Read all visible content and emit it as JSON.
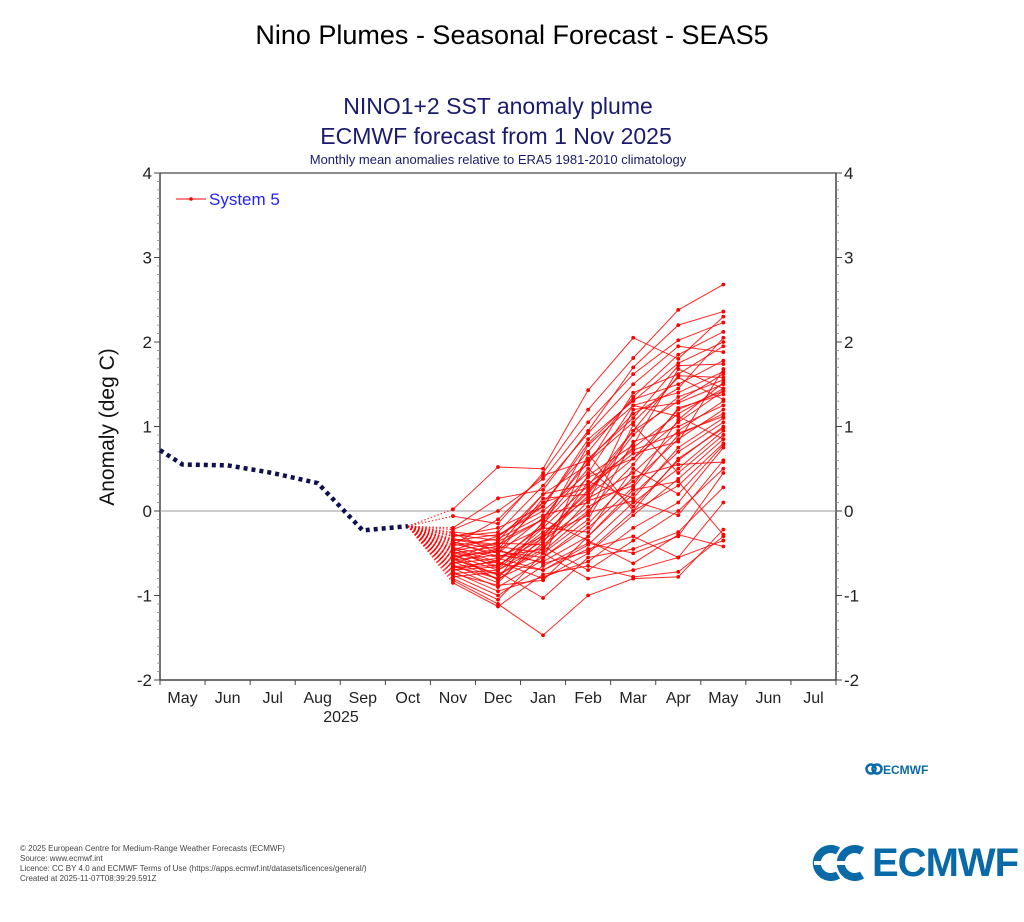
{
  "page": {
    "title": "Nino Plumes - Seasonal Forecast - SEAS5",
    "footer": [
      "© 2025 European Centre for Medium-Range Weather Forecasts (ECMWF)",
      "Source: www.ecmwf.int",
      "Licence: CC BY 4.0 and ECMWF Terms of Use (https://apps.ecmwf.int/datasets/licences/general/)",
      "Created at 2025-11-07T08:39:29.591Z"
    ],
    "logo_text": "ECMWF",
    "small_logo_text": "ECMWF",
    "colors": {
      "brand": "#0a6aa8",
      "title_navy": "#1a1a6e",
      "forecast": "#ff0000",
      "observed": "#101050",
      "legend_text": "#2222ff"
    }
  },
  "chart_data": {
    "type": "line",
    "title": "NINO1+2 SST anomaly plume",
    "subtitle": "ECMWF forecast from 1 Nov 2025",
    "subsubtitle": "Monthly mean anomalies relative to ERA5 1981-2010 climatology",
    "xlabel": "2025",
    "ylabel": "Anomaly (deg C)",
    "ylim": [
      -2,
      4
    ],
    "yticks": [
      -2,
      -1,
      0,
      1,
      2,
      3,
      4
    ],
    "xticks": [
      "May",
      "Jun",
      "Jul",
      "Aug",
      "Sep",
      "Oct",
      "Nov",
      "Dec",
      "Jan",
      "Feb",
      "Mar",
      "Apr",
      "May",
      "Jun",
      "Jul"
    ],
    "year_label": "2025",
    "legend": {
      "entries": [
        "System 5"
      ],
      "placement": "top-left"
    },
    "zero_line": true,
    "observed": {
      "name": "Observed",
      "months": [
        -0.5,
        0,
        1,
        2,
        3,
        4,
        5
      ],
      "values": [
        0.72,
        0.55,
        0.54,
        0.45,
        0.33,
        -0.23,
        -0.18
      ]
    },
    "forecast_months": [
      "Nov",
      "Dec",
      "Jan",
      "Feb",
      "Mar",
      "Apr",
      "May"
    ],
    "forecast_month_index": [
      6,
      7,
      8,
      9,
      10,
      11,
      12
    ],
    "series": [
      {
        "name": "m0",
        "values": [
          0.02,
          0.52,
          0.5,
          1.43,
          2.05,
          1.8,
          2.3
        ]
      },
      {
        "name": "m1",
        "values": [
          -0.06,
          -0.15,
          0.45,
          1.2,
          1.81,
          2.38,
          2.68
        ]
      },
      {
        "name": "m2",
        "values": [
          -0.2,
          0.15,
          0.25,
          0.95,
          1.7,
          2.2,
          2.36
        ]
      },
      {
        "name": "m3",
        "values": [
          -0.22,
          0.0,
          0.38,
          1.05,
          1.62,
          2.02,
          2.23
        ]
      },
      {
        "name": "m4",
        "values": [
          -0.25,
          -0.3,
          0.1,
          0.7,
          1.35,
          1.85,
          2.12
        ]
      },
      {
        "name": "m5",
        "values": [
          -0.28,
          -0.35,
          0.2,
          0.55,
          1.4,
          1.62,
          1.95
        ]
      },
      {
        "name": "m6",
        "values": [
          -0.3,
          -0.2,
          0.05,
          0.8,
          1.32,
          1.5,
          1.78
        ]
      },
      {
        "name": "m7",
        "values": [
          -0.33,
          -0.4,
          -0.1,
          0.62,
          1.1,
          1.72,
          1.74
        ]
      },
      {
        "name": "m8",
        "values": [
          -0.35,
          -0.28,
          0.0,
          0.45,
          1.25,
          1.4,
          1.65
        ]
      },
      {
        "name": "m9",
        "values": [
          -0.37,
          -0.45,
          -0.2,
          0.3,
          0.95,
          1.6,
          1.58
        ]
      },
      {
        "name": "m10",
        "values": [
          -0.39,
          -0.5,
          0.15,
          0.2,
          0.9,
          1.35,
          1.55
        ]
      },
      {
        "name": "m11",
        "values": [
          -0.41,
          -0.33,
          -0.05,
          0.1,
          1.2,
          1.28,
          1.5
        ]
      },
      {
        "name": "m12",
        "values": [
          -0.43,
          -0.55,
          -0.3,
          0.25,
          0.75,
          1.15,
          1.45
        ]
      },
      {
        "name": "m13",
        "values": [
          -0.45,
          -0.6,
          -0.15,
          0.4,
          0.62,
          1.05,
          1.42
        ]
      },
      {
        "name": "m14",
        "values": [
          -0.47,
          -0.38,
          -0.4,
          0.0,
          0.55,
          1.22,
          1.38
        ]
      },
      {
        "name": "m15",
        "values": [
          -0.49,
          -0.65,
          -0.25,
          0.15,
          0.45,
          0.95,
          1.3
        ]
      },
      {
        "name": "m16",
        "values": [
          -0.5,
          -0.42,
          -0.5,
          -0.1,
          0.82,
          1.0,
          1.25
        ]
      },
      {
        "name": "m17",
        "values": [
          -0.52,
          -0.7,
          -0.35,
          0.05,
          0.35,
          0.85,
          1.2
        ]
      },
      {
        "name": "m18",
        "values": [
          -0.54,
          -0.48,
          -0.55,
          -0.2,
          0.28,
          0.9,
          1.15
        ]
      },
      {
        "name": "m19",
        "values": [
          -0.56,
          -0.75,
          -0.45,
          0.35,
          0.15,
          0.75,
          1.1
        ]
      },
      {
        "name": "m20",
        "values": [
          -0.58,
          -0.52,
          -0.6,
          -0.3,
          0.2,
          0.7,
          1.05
        ]
      },
      {
        "name": "m21",
        "values": [
          -0.6,
          -0.8,
          -0.12,
          0.5,
          0.05,
          0.6,
          1.0
        ]
      },
      {
        "name": "m22",
        "values": [
          -0.62,
          -0.56,
          -0.7,
          -0.4,
          0.1,
          0.5,
          0.95
        ]
      },
      {
        "name": "m23",
        "values": [
          -0.64,
          -0.85,
          -0.3,
          -0.05,
          1.02,
          0.45,
          0.9
        ]
      },
      {
        "name": "m24",
        "values": [
          -0.66,
          -0.6,
          -0.8,
          -0.5,
          -0.05,
          0.38,
          0.85
        ]
      },
      {
        "name": "m25",
        "values": [
          -0.68,
          -0.9,
          -0.58,
          0.68,
          0.0,
          0.3,
          0.8
        ]
      },
      {
        "name": "m26",
        "values": [
          -0.7,
          -0.66,
          -0.2,
          -0.25,
          0.5,
          0.2,
          0.78
        ]
      },
      {
        "name": "m27",
        "values": [
          -0.72,
          -0.95,
          -0.78,
          -0.6,
          -0.2,
          0.1,
          0.75
        ]
      },
      {
        "name": "m28",
        "values": [
          -0.74,
          -0.7,
          -0.42,
          -0.7,
          -0.35,
          0.0,
          0.5
        ]
      },
      {
        "name": "m29",
        "values": [
          -0.76,
          -1.0,
          -0.65,
          -0.38,
          -0.5,
          -0.3,
          0.45
        ]
      },
      {
        "name": "m30",
        "values": [
          -0.78,
          -0.72,
          -1.03,
          -0.55,
          -0.45,
          -0.25,
          0.28
        ]
      },
      {
        "name": "m31",
        "values": [
          -0.8,
          -1.05,
          -0.5,
          -0.8,
          -0.7,
          -0.55,
          0.1
        ]
      },
      {
        "name": "m32",
        "values": [
          -0.82,
          -1.1,
          -1.47,
          -1.0,
          -0.8,
          -0.78,
          -0.22
        ]
      },
      {
        "name": "m33",
        "values": [
          -0.85,
          -1.13,
          -0.75,
          -0.65,
          -0.78,
          -0.72,
          -0.3
        ]
      },
      {
        "name": "m34",
        "values": [
          -0.3,
          -0.25,
          0.3,
          0.92,
          1.5,
          1.95,
          1.88
        ]
      },
      {
        "name": "m35",
        "values": [
          -0.4,
          -0.1,
          0.42,
          0.6,
          1.15,
          1.45,
          2.05
        ]
      },
      {
        "name": "m36",
        "values": [
          -0.55,
          -0.45,
          0.1,
          0.28,
          0.68,
          0.82,
          1.68
        ]
      },
      {
        "name": "m37",
        "values": [
          -0.65,
          -0.8,
          -0.55,
          -0.15,
          0.4,
          0.55,
          0.58
        ]
      },
      {
        "name": "m38",
        "values": [
          -0.48,
          -0.62,
          -0.7,
          -0.45,
          -0.3,
          -0.55,
          -0.35
        ]
      },
      {
        "name": "m39",
        "values": [
          -0.58,
          -0.36,
          -0.1,
          -0.35,
          -0.62,
          -0.28,
          -0.42
        ]
      },
      {
        "name": "m40",
        "values": [
          -0.36,
          -0.54,
          -0.45,
          0.12,
          0.3,
          1.08,
          1.52
        ]
      },
      {
        "name": "m41",
        "values": [
          -0.44,
          -0.68,
          -0.28,
          0.22,
          0.95,
          1.3,
          1.62
        ]
      },
      {
        "name": "m42",
        "values": [
          -0.62,
          -0.46,
          -0.62,
          -0.48,
          0.0,
          0.62,
          0.98
        ]
      },
      {
        "name": "m43",
        "values": [
          -0.5,
          -0.82,
          -0.38,
          0.42,
          0.78,
          1.68,
          1.45
        ]
      },
      {
        "name": "m44",
        "values": [
          -0.7,
          -0.58,
          -0.18,
          0.78,
          1.25,
          1.12,
          0.85
        ]
      },
      {
        "name": "m45",
        "values": [
          -0.26,
          -0.5,
          -0.08,
          0.58,
          1.05,
          1.58,
          1.32
        ]
      },
      {
        "name": "m46",
        "values": [
          -0.34,
          -0.42,
          0.2,
          0.32,
          0.72,
          0.92,
          1.12
        ]
      },
      {
        "name": "m47",
        "values": [
          -0.46,
          -0.3,
          0.05,
          0.85,
          1.3,
          1.75,
          2.0
        ]
      },
      {
        "name": "m48",
        "values": [
          -0.74,
          -0.88,
          -0.82,
          -0.3,
          0.25,
          0.35,
          -0.28
        ]
      },
      {
        "name": "m49",
        "values": [
          -0.57,
          -0.76,
          -0.48,
          -0.02,
          0.12,
          -0.05,
          0.6
        ]
      },
      {
        "name": "m50",
        "values": [
          -0.67,
          -0.64,
          -0.32,
          0.18,
          0.62,
          1.2,
          1.42
        ]
      }
    ]
  }
}
